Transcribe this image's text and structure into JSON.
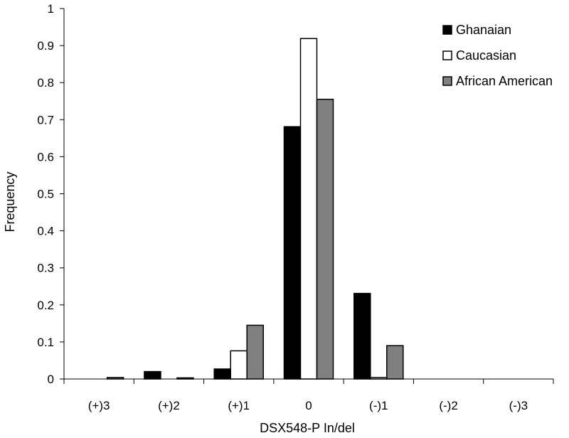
{
  "chart_data": {
    "type": "bar",
    "title": "",
    "xlabel": "DSX548-P  In/del",
    "ylabel": "Frequency",
    "categories": [
      "(+)3",
      "(+)2",
      "(+)1",
      "0",
      "(-)1",
      "(-)2",
      "(-)3"
    ],
    "ylim": [
      0,
      1
    ],
    "yticks": [
      "0",
      "0.1",
      "0.2",
      "0.3",
      "0.4",
      "0.5",
      "0.6",
      "0.7",
      "0.8",
      "0.9",
      "1"
    ],
    "grid": false,
    "legend_position": "top-right",
    "series": [
      {
        "name": "Ghanaian",
        "color": "#000000",
        "values": [
          0,
          0.02,
          0.027,
          0.681,
          0.231,
          0,
          0
        ]
      },
      {
        "name": "Caucasian",
        "color": "#ffffff",
        "values": [
          0,
          0,
          0.076,
          0.919,
          0.004,
          0,
          0
        ]
      },
      {
        "name": "African American",
        "color": "#808080",
        "values": [
          0.004,
          0.003,
          0.145,
          0.755,
          0.09,
          0,
          0
        ]
      }
    ]
  }
}
